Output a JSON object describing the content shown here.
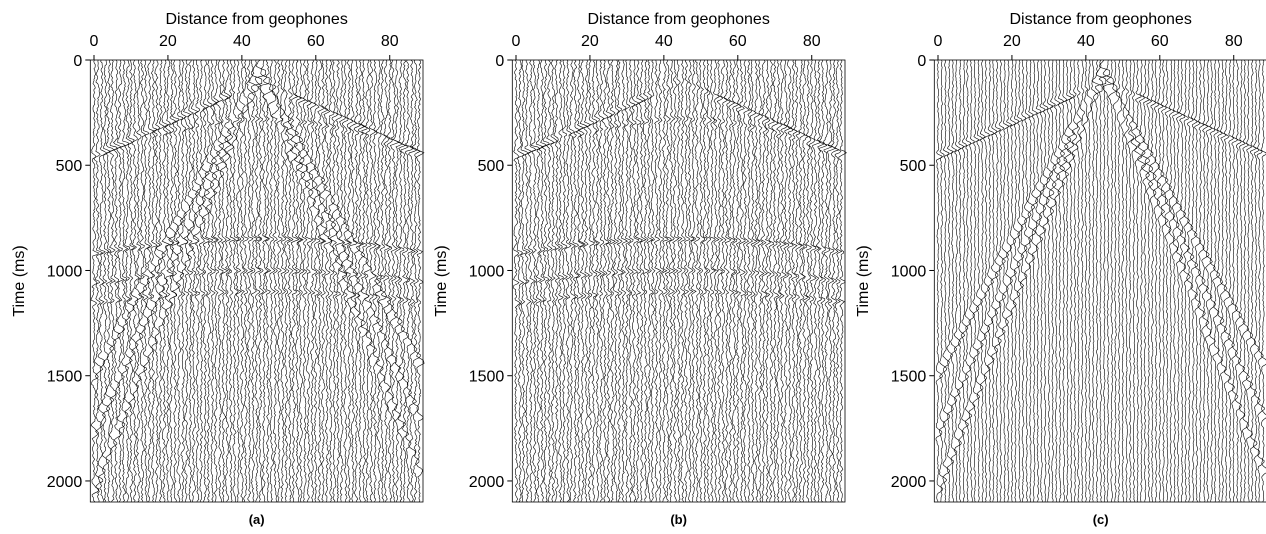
{
  "chart_data": [
    {
      "type": "wiggle",
      "title": "Distance from geophones",
      "y_label": "Time (ms)",
      "caption": "(a)",
      "xlim": [
        -1,
        89
      ],
      "xticks": [
        0,
        20,
        40,
        60,
        80
      ],
      "ylim": [
        0,
        2100
      ],
      "yticks": [
        0,
        500,
        1000,
        1500,
        2000
      ],
      "y_inverted": true,
      "color": "#000000"
    },
    {
      "type": "wiggle",
      "title": "Distance from geophones",
      "y_label": "Time (ms)",
      "caption": "(b)",
      "xlim": [
        -1,
        89
      ],
      "xticks": [
        0,
        20,
        40,
        60,
        80
      ],
      "ylim": [
        0,
        2100
      ],
      "yticks": [
        0,
        500,
        1000,
        1500,
        2000
      ],
      "y_inverted": true,
      "color": "#000000"
    },
    {
      "type": "wiggle",
      "title": "Distance from geophones",
      "y_label": "Time (ms)",
      "caption": "(c)",
      "xlim": [
        -1,
        89
      ],
      "xticks": [
        0,
        20,
        40,
        60,
        80
      ],
      "ylim": [
        0,
        2100
      ],
      "yticks": [
        0,
        500,
        1000,
        1500,
        2000
      ],
      "y_inverted": true,
      "color": "#000000"
    }
  ]
}
